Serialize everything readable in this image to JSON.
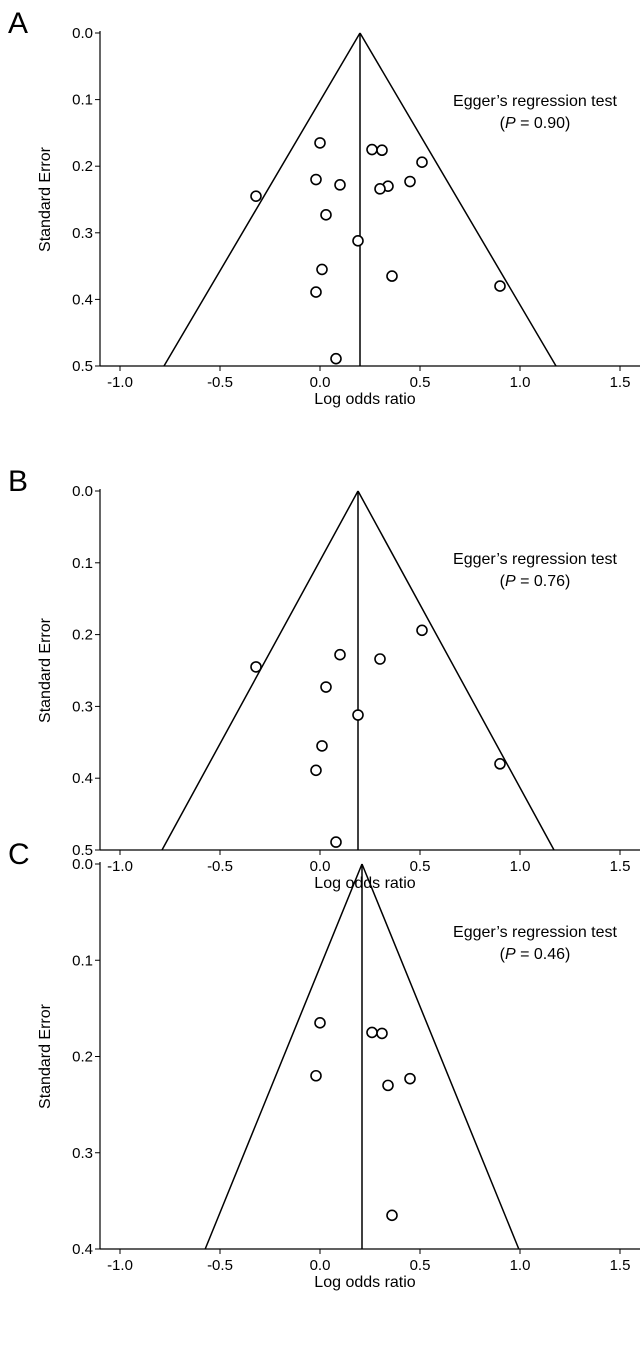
{
  "chart_data": [
    {
      "panel_label": "A",
      "type": "scatter",
      "xlabel": "Log odds ratio",
      "ylabel": "Standard Error",
      "xlim": [
        -1.1,
        1.6
      ],
      "ylim": [
        0,
        0.5
      ],
      "y_reversed": true,
      "xticks": [
        "-1.0",
        "-0.5",
        "0.0",
        "0.5",
        "1.0",
        "1.5"
      ],
      "yticks": [
        "0.0",
        "0.1",
        "0.2",
        "0.3",
        "0.4",
        "0.5"
      ],
      "pooled_estimate": 0.2,
      "funnel_z": 1.96,
      "annotation": {
        "line1": "Egger’s regression test",
        "p_prefix": "P",
        "p_rest": " = 0.90)"
      },
      "points": [
        {
          "x": 0.0,
          "y": 0.165
        },
        {
          "x": 0.26,
          "y": 0.175
        },
        {
          "x": 0.31,
          "y": 0.176
        },
        {
          "x": 0.51,
          "y": 0.194
        },
        {
          "x": -0.02,
          "y": 0.22
        },
        {
          "x": 0.1,
          "y": 0.228
        },
        {
          "x": 0.45,
          "y": 0.223
        },
        {
          "x": 0.34,
          "y": 0.23
        },
        {
          "x": 0.3,
          "y": 0.234
        },
        {
          "x": -0.32,
          "y": 0.245
        },
        {
          "x": 0.03,
          "y": 0.273
        },
        {
          "x": 0.19,
          "y": 0.312
        },
        {
          "x": 0.01,
          "y": 0.355
        },
        {
          "x": 0.36,
          "y": 0.365
        },
        {
          "x": 0.9,
          "y": 0.38
        },
        {
          "x": -0.02,
          "y": 0.389
        },
        {
          "x": 0.08,
          "y": 0.489
        }
      ]
    },
    {
      "panel_label": "B",
      "type": "scatter",
      "xlabel": "Log odds ratio",
      "ylabel": "Standard Error",
      "xlim": [
        -1.1,
        1.6
      ],
      "ylim": [
        0,
        0.5
      ],
      "y_reversed": true,
      "xticks": [
        "-1.0",
        "-0.5",
        "0.0",
        "0.5",
        "1.0",
        "1.5"
      ],
      "yticks": [
        "0.0",
        "0.1",
        "0.2",
        "0.3",
        "0.4",
        "0.5"
      ],
      "pooled_estimate": 0.19,
      "funnel_z": 1.96,
      "annotation": {
        "line1": "Egger’s regression test",
        "p_prefix": "P",
        "p_rest": " = 0.76)"
      },
      "points": [
        {
          "x": 0.51,
          "y": 0.194
        },
        {
          "x": 0.1,
          "y": 0.228
        },
        {
          "x": 0.3,
          "y": 0.234
        },
        {
          "x": -0.32,
          "y": 0.245
        },
        {
          "x": 0.03,
          "y": 0.273
        },
        {
          "x": 0.19,
          "y": 0.312
        },
        {
          "x": 0.01,
          "y": 0.355
        },
        {
          "x": 0.9,
          "y": 0.38
        },
        {
          "x": -0.02,
          "y": 0.389
        },
        {
          "x": 0.08,
          "y": 0.489
        }
      ]
    },
    {
      "panel_label": "C",
      "type": "scatter",
      "xlabel": "Log odds ratio",
      "ylabel": "Standard Error",
      "xlim": [
        -1.1,
        1.6
      ],
      "ylim": [
        0,
        0.4
      ],
      "y_reversed": true,
      "xticks": [
        "-1.0",
        "-0.5",
        "0.0",
        "0.5",
        "1.0",
        "1.5"
      ],
      "yticks": [
        "0.0",
        "0.1",
        "0.2",
        "0.3",
        "0.4"
      ],
      "pooled_estimate": 0.21,
      "funnel_z": 1.96,
      "annotation": {
        "line1": "Egger’s regression test",
        "p_prefix": "P",
        "p_rest": " = 0.46)"
      },
      "points": [
        {
          "x": 0.0,
          "y": 0.165
        },
        {
          "x": 0.26,
          "y": 0.175
        },
        {
          "x": 0.31,
          "y": 0.176
        },
        {
          "x": -0.02,
          "y": 0.22
        },
        {
          "x": 0.45,
          "y": 0.223
        },
        {
          "x": 0.34,
          "y": 0.23
        },
        {
          "x": 0.36,
          "y": 0.365
        }
      ]
    }
  ]
}
